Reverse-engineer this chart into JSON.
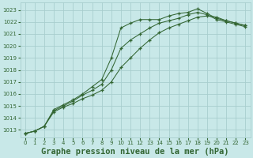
{
  "background_color": "#c8e8e8",
  "grid_color": "#a8cece",
  "line_color": "#336633",
  "title": "Graphe pression niveau de la mer (hPa)",
  "title_fontsize": 7.5,
  "xlim": [
    -0.5,
    23.5
  ],
  "ylim": [
    1012.4,
    1023.6
  ],
  "yticks": [
    1013,
    1014,
    1015,
    1016,
    1017,
    1018,
    1019,
    1020,
    1021,
    1022,
    1023
  ],
  "xticks": [
    0,
    1,
    2,
    3,
    4,
    5,
    6,
    7,
    8,
    9,
    10,
    11,
    12,
    13,
    14,
    15,
    16,
    17,
    18,
    19,
    20,
    21,
    22,
    23
  ],
  "series": [
    [
      1012.7,
      1012.9,
      1013.3,
      1014.7,
      1015.1,
      1015.5,
      1016.0,
      1016.6,
      1017.2,
      1019.0,
      1021.5,
      1021.9,
      1022.2,
      1022.2,
      1022.2,
      1022.5,
      1022.7,
      1022.8,
      1023.1,
      1022.7,
      1022.3,
      1022.1,
      1021.9,
      1021.7
    ],
    [
      1012.7,
      1012.9,
      1013.3,
      1014.6,
      1015.0,
      1015.4,
      1015.9,
      1016.3,
      1016.8,
      1018.0,
      1019.8,
      1020.5,
      1021.0,
      1021.5,
      1021.9,
      1022.1,
      1022.3,
      1022.6,
      1022.8,
      1022.6,
      1022.2,
      1022.0,
      1021.8,
      1021.6
    ],
    [
      1012.7,
      1012.9,
      1013.3,
      1014.5,
      1014.9,
      1015.2,
      1015.6,
      1015.9,
      1016.3,
      1017.0,
      1018.2,
      1019.0,
      1019.8,
      1020.5,
      1021.1,
      1021.5,
      1021.8,
      1022.1,
      1022.4,
      1022.5,
      1022.4,
      1022.1,
      1021.9,
      1021.7
    ]
  ]
}
